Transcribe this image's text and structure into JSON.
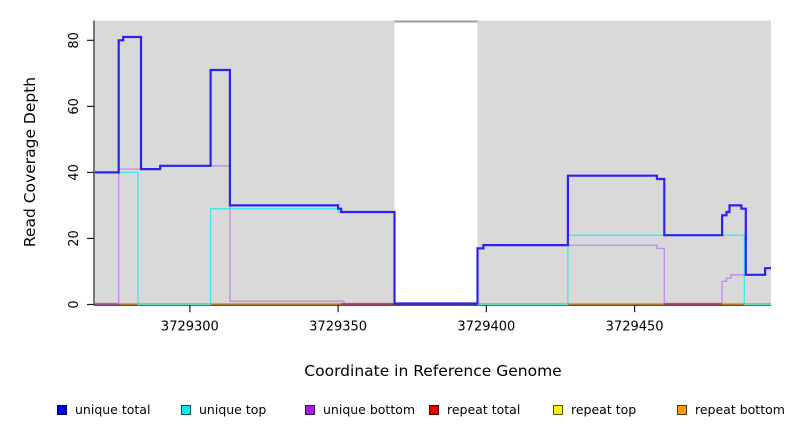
{
  "figure": {
    "ylabel": "Read Coverage Depth",
    "xlabel": "Coordinate in Reference Genome"
  },
  "legend": {
    "items": [
      {
        "label": "unique total",
        "color": "#0000ee"
      },
      {
        "label": "unique top",
        "color": "#00eeee"
      },
      {
        "label": "unique bottom",
        "color": "#a020f0"
      },
      {
        "label": "repeat total",
        "color": "#ee0000"
      },
      {
        "label": "repeat top",
        "color": "#f5f500"
      },
      {
        "label": "repeat bottom",
        "color": "#ff9d00"
      }
    ]
  },
  "chart_data": {
    "type": "line",
    "title": "",
    "xlabel": "Coordinate in Reference Genome",
    "ylabel": "Read Coverage Depth",
    "xlim": [
      3729268,
      3729496
    ],
    "ylim": [
      0,
      86
    ],
    "x_ticks": [
      3729300,
      3729350,
      3729400,
      3729450
    ],
    "x_tick_labels": [
      "3729300",
      "3729350",
      "3729400",
      "3729450"
    ],
    "y_ticks": [
      0,
      20,
      40,
      60,
      80
    ],
    "y_tick_labels": [
      "0",
      "20",
      "40",
      "60",
      "80"
    ],
    "grid": false,
    "legend_position": "bottom",
    "plot_background": "#d9d9d9",
    "axis_color": "#1a1a1a",
    "gap_region": {
      "x0": 3729369,
      "x1": 3729397,
      "fill": "#ffffff",
      "top_line_color": "#9e9e9e"
    },
    "series": [
      {
        "name": "unique total",
        "color": "#2b22f0",
        "width": 2.2,
        "draw": "step",
        "points": [
          [
            3729268,
            40
          ],
          [
            3729276,
            80
          ],
          [
            3729277.5,
            81
          ],
          [
            3729283.5,
            41
          ],
          [
            3729290,
            42
          ],
          [
            3729307,
            71
          ],
          [
            3729313.5,
            30
          ],
          [
            3729350,
            29
          ],
          [
            3729351,
            28
          ],
          [
            3729369,
            0.3
          ],
          [
            3729397,
            17
          ],
          [
            3729399,
            18
          ],
          [
            3729427.5,
            39
          ],
          [
            3729457.5,
            38
          ],
          [
            3729460,
            21
          ],
          [
            3729479.5,
            27
          ],
          [
            3729481,
            28
          ],
          [
            3729482,
            30
          ],
          [
            3729486,
            29
          ],
          [
            3729487.5,
            9
          ],
          [
            3729494,
            11
          ],
          [
            3729496,
            11
          ]
        ]
      },
      {
        "name": "unique top",
        "color": "#41e6ea",
        "width": 1.3,
        "draw": "step",
        "points": [
          [
            3729268,
            40
          ],
          [
            3729282.5,
            0
          ],
          [
            3729307,
            29
          ],
          [
            3729350,
            28
          ],
          [
            3729369,
            0.3
          ],
          [
            3729397,
            0
          ],
          [
            3729427.5,
            21
          ],
          [
            3729487,
            0
          ],
          [
            3729496,
            0
          ]
        ]
      },
      {
        "name": "unique bottom",
        "color": "#bd8ce8",
        "width": 1.3,
        "draw": "step",
        "points": [
          [
            3729268,
            0.3
          ],
          [
            3729276,
            41
          ],
          [
            3729290,
            42
          ],
          [
            3729313.5,
            1
          ],
          [
            3729352,
            0.2
          ],
          [
            3729369,
            0.3
          ],
          [
            3729397,
            17
          ],
          [
            3729399,
            18
          ],
          [
            3729457.5,
            17
          ],
          [
            3729460,
            0.2
          ],
          [
            3729479.5,
            7
          ],
          [
            3729481,
            8
          ],
          [
            3729482.5,
            9
          ],
          [
            3729494,
            11
          ],
          [
            3729496,
            11
          ]
        ]
      },
      {
        "name": "repeat total",
        "color": "#ee0000",
        "width": 1.3,
        "draw": "baseline",
        "points": [
          [
            3729268,
            0
          ],
          [
            3729496,
            0
          ]
        ]
      },
      {
        "name": "repeat top",
        "color": "#f5f500",
        "width": 1.3,
        "draw": "baseline",
        "points": [
          [
            3729268,
            0
          ],
          [
            3729496,
            0
          ]
        ]
      },
      {
        "name": "repeat bottom",
        "color": "#ff9d00",
        "width": 1.3,
        "draw": "baseline",
        "points": [
          [
            3729268,
            0
          ],
          [
            3729496,
            0
          ]
        ]
      }
    ],
    "baseline_segments": [
      {
        "x0": 3729268,
        "x1": 3729276,
        "color": "#d84fb4"
      },
      {
        "x0": 3729276,
        "x1": 3729282.5,
        "color": "#ff9d00"
      },
      {
        "x0": 3729282.5,
        "x1": 3729307,
        "color": "#8fca8f"
      },
      {
        "x0": 3729307,
        "x1": 3729351,
        "color": "#ff9d00"
      },
      {
        "x0": 3729351,
        "x1": 3729369,
        "color": "#e8355f"
      },
      {
        "x0": 3729397,
        "x1": 3729427.5,
        "color": "#8fca8f"
      },
      {
        "x0": 3729427.5,
        "x1": 3729460,
        "color": "#ff9d00"
      },
      {
        "x0": 3729460,
        "x1": 3729479.5,
        "color": "#e8355f"
      },
      {
        "x0": 3729479.5,
        "x1": 3729487.5,
        "color": "#ff9d00"
      },
      {
        "x0": 3729487.5,
        "x1": 3729496,
        "color": "#8fca8f"
      }
    ]
  }
}
